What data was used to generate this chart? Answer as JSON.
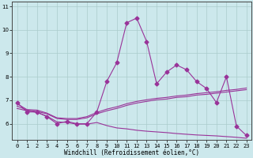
{
  "title": "",
  "xlabel": "Windchill (Refroidissement éolien,°C)",
  "ylabel": "",
  "background_color": "#cce8ec",
  "line_color": "#993399",
  "grid_color": "#aacccc",
  "x_data": [
    0,
    1,
    2,
    3,
    4,
    5,
    6,
    7,
    8,
    9,
    10,
    11,
    12,
    13,
    14,
    15,
    16,
    17,
    18,
    19,
    20,
    21,
    22,
    23
  ],
  "y_main": [
    6.9,
    6.5,
    6.5,
    6.3,
    6.0,
    6.1,
    6.0,
    6.0,
    6.5,
    7.8,
    8.6,
    10.3,
    10.5,
    9.5,
    7.7,
    8.2,
    8.5,
    8.3,
    7.8,
    7.5,
    6.9,
    8.0,
    5.9,
    5.5
  ],
  "y_line2": [
    6.85,
    6.6,
    6.58,
    6.45,
    6.25,
    6.22,
    6.22,
    6.3,
    6.48,
    6.62,
    6.72,
    6.85,
    6.95,
    7.02,
    7.08,
    7.12,
    7.18,
    7.22,
    7.28,
    7.32,
    7.36,
    7.42,
    7.46,
    7.52
  ],
  "y_line3": [
    6.75,
    6.58,
    6.52,
    6.42,
    6.22,
    6.18,
    6.18,
    6.25,
    6.42,
    6.55,
    6.65,
    6.78,
    6.88,
    6.95,
    7.02,
    7.05,
    7.12,
    7.15,
    7.22,
    7.25,
    7.3,
    7.35,
    7.4,
    7.45
  ],
  "y_line4": [
    6.65,
    6.55,
    6.48,
    6.32,
    6.08,
    6.05,
    5.98,
    5.98,
    6.05,
    5.92,
    5.82,
    5.78,
    5.72,
    5.68,
    5.65,
    5.62,
    5.58,
    5.55,
    5.52,
    5.5,
    5.48,
    5.45,
    5.42,
    5.38
  ],
  "ylim": [
    5.3,
    11.2
  ],
  "xlim": [
    -0.5,
    23.5
  ],
  "yticks": [
    6,
    7,
    8,
    9,
    10,
    11
  ],
  "xticks": [
    0,
    1,
    2,
    3,
    4,
    5,
    6,
    7,
    8,
    9,
    10,
    11,
    12,
    13,
    14,
    15,
    16,
    17,
    18,
    19,
    20,
    21,
    22,
    23
  ],
  "marker": "D",
  "markersize": 2.5,
  "linewidth": 0.8,
  "axis_label_fontsize": 5.5,
  "tick_fontsize": 5.0
}
